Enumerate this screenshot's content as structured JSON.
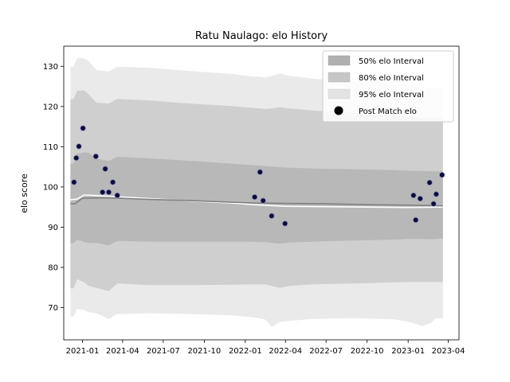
{
  "chart_data": {
    "type": "line",
    "title": "Ratu Naulago: elo History",
    "xlabel": "",
    "ylabel": "elo score",
    "xlim": [
      "2020-11-20",
      "2023-04-25"
    ],
    "ylim": [
      62,
      135
    ],
    "yticks": [
      70,
      80,
      90,
      100,
      110,
      120,
      130
    ],
    "xticks": [
      "2021-01",
      "2021-04",
      "2021-07",
      "2021-10",
      "2022-01",
      "2022-04",
      "2022-07",
      "2022-10",
      "2023-01",
      "2023-04"
    ],
    "legend": {
      "position": "top-right",
      "entries": [
        "50% elo Interval",
        "80% elo Interval",
        "95% elo Interval",
        "Post Match elo"
      ]
    },
    "colors": {
      "band50": "#b0b0b0",
      "band80": "#c6c6c6",
      "band95": "#e3e3e3",
      "mean_line": "#808080",
      "white_line": "#ffffff",
      "points_fill": "#0c0c3a",
      "points_edge": "#9090c0"
    },
    "interval_bands": {
      "dates": [
        "2020-12-05",
        "2020-12-12",
        "2020-12-20",
        "2021-01-05",
        "2021-01-15",
        "2021-02-01",
        "2021-03-01",
        "2021-03-20",
        "2021-06-01",
        "2021-09-01",
        "2021-12-01",
        "2022-01-20",
        "2022-01-21",
        "2022-02-01",
        "2022-02-15",
        "2022-03-01",
        "2022-03-20",
        "2022-04-10",
        "2022-06-01",
        "2022-09-01",
        "2022-12-01",
        "2023-01-10",
        "2023-02-01",
        "2023-02-20",
        "2023-03-05",
        "2023-03-20"
      ],
      "band50": {
        "upper": [
          105.8,
          105.8,
          108.3,
          108.6,
          108.5,
          107.0,
          106.5,
          107.5,
          107.1,
          106.5,
          105.8,
          105.4,
          105.4,
          105.3,
          105.2,
          105.1,
          104.9,
          104.8,
          104.6,
          104.4,
          104.2,
          104.0,
          104.0,
          103.9,
          103.9,
          103.9
        ],
        "lower": [
          86.0,
          86.0,
          86.9,
          86.3,
          86.1,
          86.1,
          85.5,
          86.6,
          86.4,
          86.4,
          86.4,
          86.4,
          86.4,
          86.3,
          86.3,
          86.1,
          85.9,
          86.2,
          86.4,
          86.7,
          86.9,
          87.1,
          87.1,
          87.0,
          87.1,
          87.2
        ]
      },
      "band80": {
        "upper": [
          121.8,
          121.8,
          123.9,
          124.0,
          123.0,
          121.0,
          120.7,
          121.9,
          121.5,
          120.7,
          120.1,
          119.6,
          119.6,
          119.5,
          119.4,
          119.5,
          119.8,
          119.5,
          119.0,
          118.4,
          117.8,
          117.4,
          117.2,
          117.2,
          117.3,
          117.3
        ],
        "lower": [
          74.8,
          74.8,
          77.1,
          76.3,
          75.4,
          74.9,
          74.1,
          76.0,
          75.6,
          75.6,
          75.7,
          75.8,
          75.8,
          75.8,
          75.8,
          75.4,
          74.9,
          75.4,
          75.8,
          76.0,
          76.3,
          76.4,
          76.4,
          76.4,
          76.4,
          76.4
        ]
      },
      "band95": {
        "upper": [
          129.9,
          129.9,
          132.0,
          132.0,
          131.3,
          129.1,
          128.7,
          129.9,
          129.6,
          128.8,
          128.1,
          127.4,
          127.4,
          127.4,
          127.2,
          127.6,
          128.2,
          127.6,
          126.9,
          126.2,
          125.6,
          125.1,
          124.9,
          124.7,
          124.7,
          124.7
        ],
        "lower": [
          67.8,
          67.8,
          69.7,
          69.4,
          68.9,
          68.6,
          67.2,
          68.4,
          68.6,
          68.4,
          68.1,
          67.6,
          67.6,
          67.4,
          67.0,
          65.2,
          66.5,
          66.7,
          67.2,
          67.4,
          67.1,
          66.3,
          65.4,
          66.1,
          67.4,
          67.3
        ]
      }
    },
    "mean_line": {
      "dates": [
        "2020-12-05",
        "2020-12-15",
        "2021-01-01",
        "2021-03-01",
        "2021-06-01",
        "2021-09-01",
        "2021-12-01",
        "2022-01-20",
        "2022-04-01",
        "2022-07-01",
        "2022-10-01",
        "2023-01-01",
        "2023-03-20"
      ],
      "values": [
        95.8,
        95.8,
        97.2,
        97.3,
        96.9,
        96.6,
        96.2,
        96.0,
        95.9,
        95.8,
        95.6,
        95.5,
        95.3
      ]
    },
    "white_line": {
      "dates": [
        "2020-12-05",
        "2020-12-20",
        "2021-01-05",
        "2021-03-01",
        "2021-06-01",
        "2021-09-01",
        "2021-12-01",
        "2022-01-20",
        "2022-04-01",
        "2022-07-01",
        "2022-10-01",
        "2023-01-01",
        "2023-03-20"
      ],
      "values": [
        96.8,
        97.0,
        98.0,
        97.7,
        97.1,
        96.5,
        96.0,
        95.6,
        95.2,
        95.1,
        95.0,
        94.9,
        95.0
      ]
    },
    "post_match_points": {
      "x": [
        "2020-12-13",
        "2020-12-18",
        "2020-12-24",
        "2021-01-02",
        "2021-01-31",
        "2021-02-15",
        "2021-02-21",
        "2021-03-01",
        "2021-03-10",
        "2021-03-20",
        "2022-01-22",
        "2022-02-03",
        "2022-02-10",
        "2022-03-01",
        "2022-03-31",
        "2023-01-13",
        "2023-01-18",
        "2023-01-28",
        "2023-02-18",
        "2023-02-27",
        "2023-03-05",
        "2023-03-18"
      ],
      "y": [
        101.2,
        107.2,
        110.1,
        114.6,
        107.6,
        98.7,
        104.5,
        98.7,
        101.2,
        97.9,
        97.5,
        103.7,
        96.6,
        92.8,
        90.9,
        97.9,
        91.8,
        97.1,
        101.1,
        95.8,
        98.2,
        103.0
      ]
    }
  }
}
